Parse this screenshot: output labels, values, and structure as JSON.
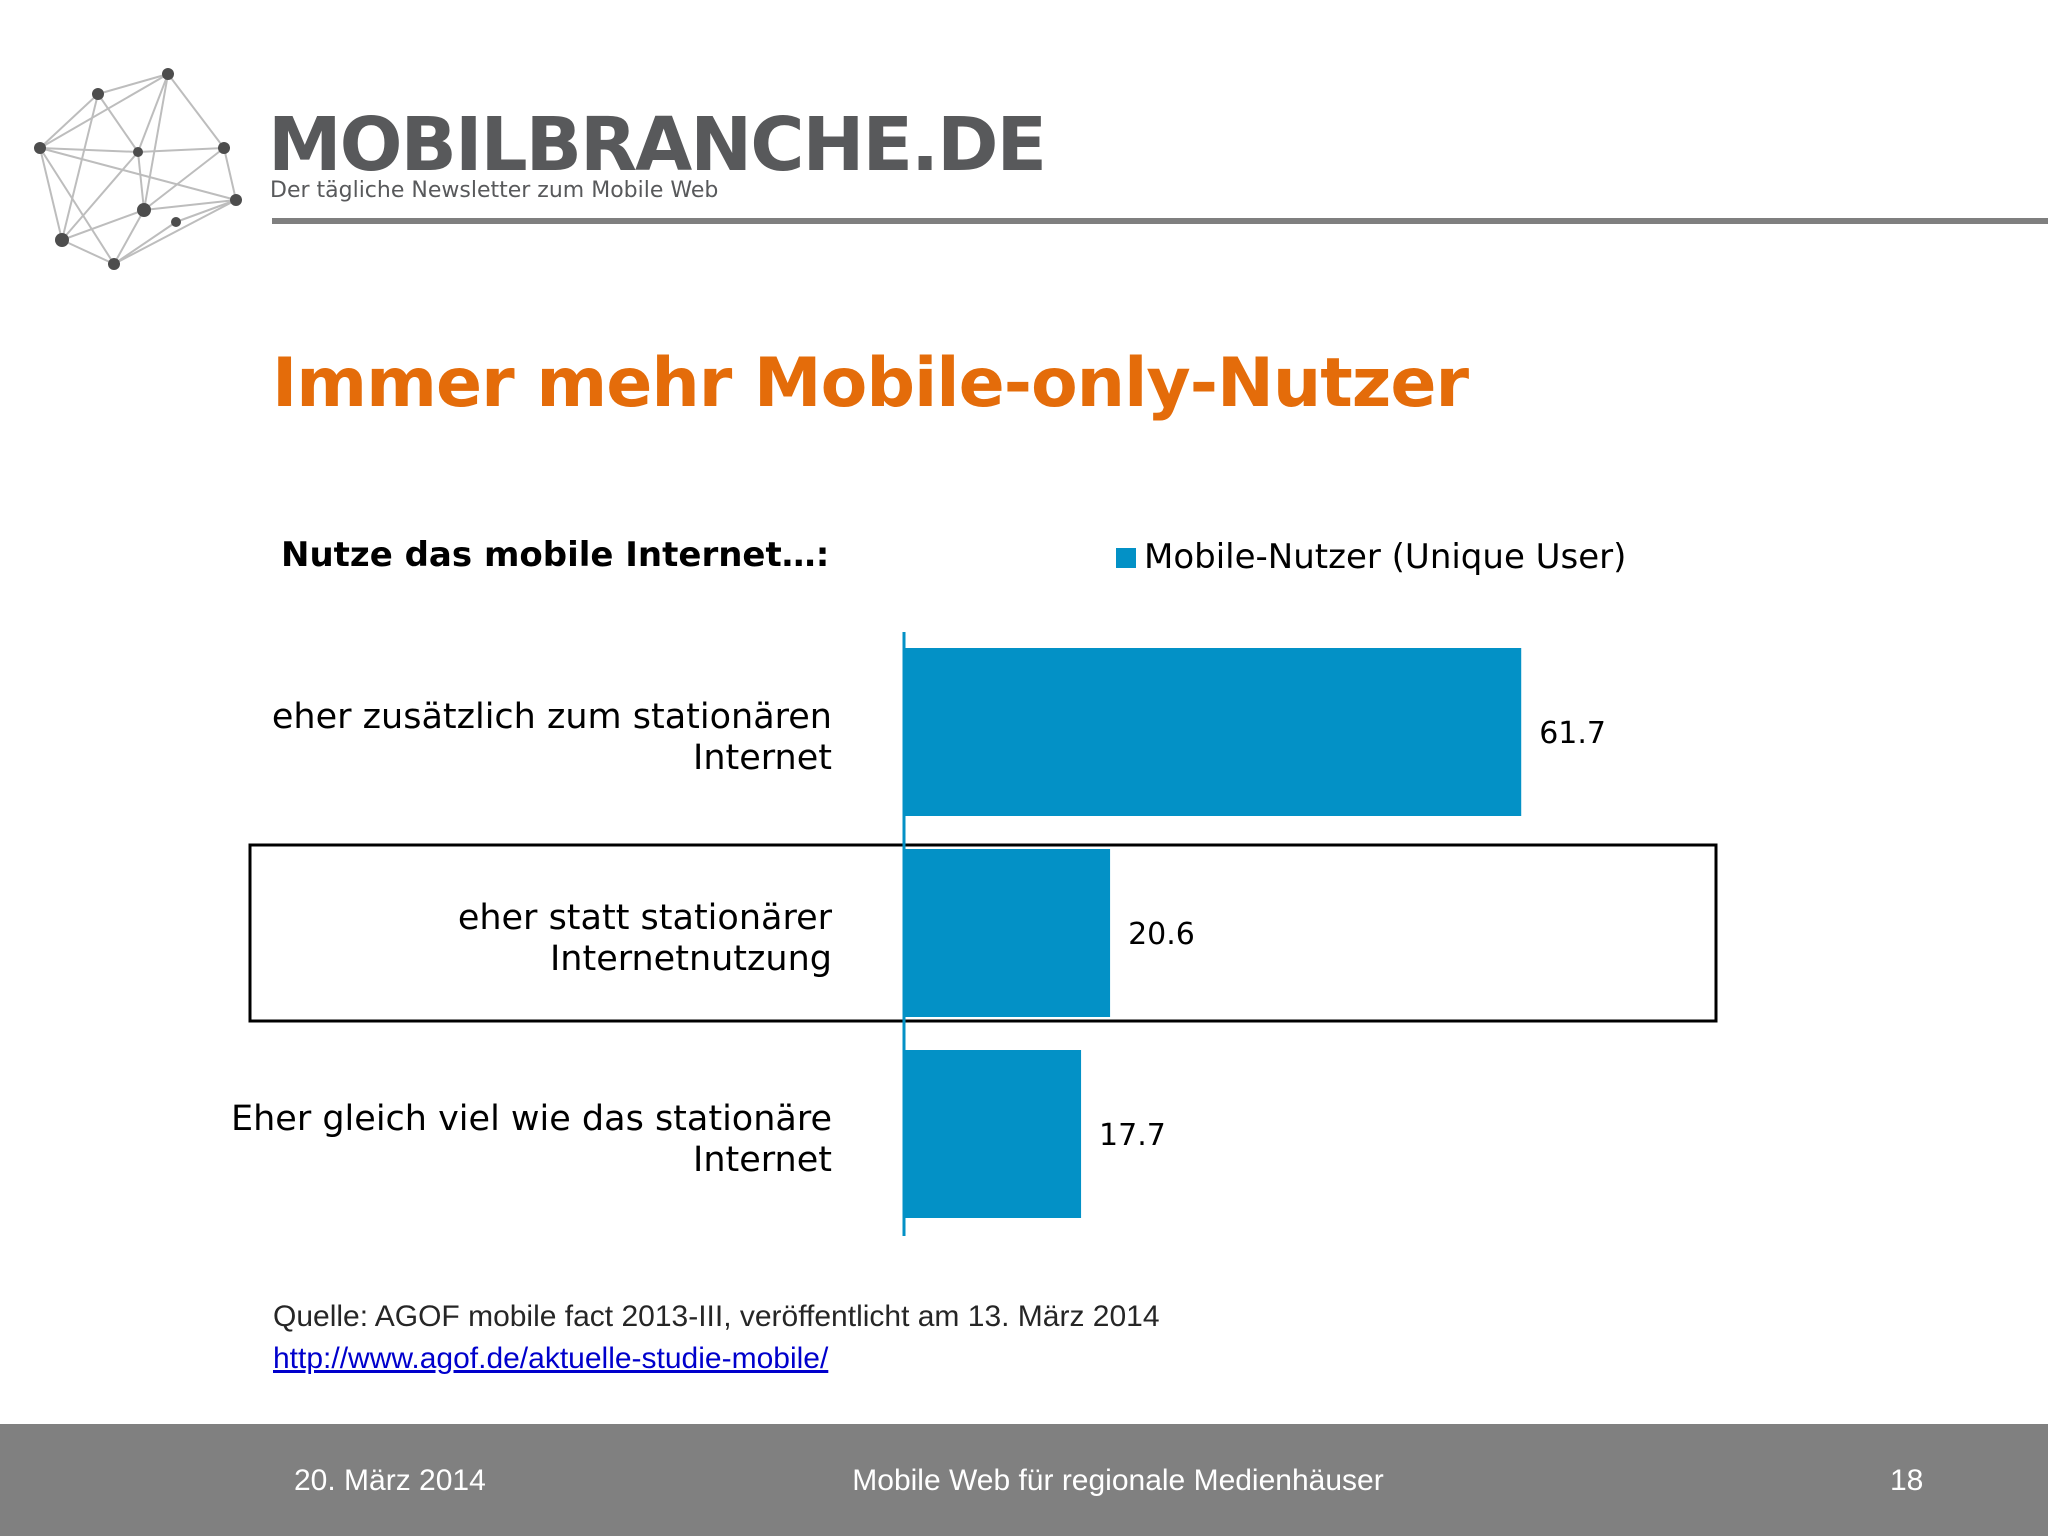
{
  "brand": {
    "name": "MOBILBRANCHE.DE",
    "tagline": "Der tägliche Newsletter zum Mobile Web"
  },
  "slide": {
    "title": "Immer mehr Mobile-only-Nutzer"
  },
  "colors": {
    "accent": "#e46c0a",
    "bar": "#0391c6",
    "footer": "#808080",
    "link": "#0000cc"
  },
  "chart_data": {
    "type": "bar",
    "orientation": "horizontal",
    "title": "Nutze das mobile Internet…:",
    "categories": [
      [
        "eher zusätzlich zum stationären",
        "Internet"
      ],
      [
        "eher statt stationärer",
        "Internetnutzung"
      ],
      [
        "Eher gleich viel wie das stationäre",
        "Internet"
      ]
    ],
    "series": [
      {
        "name": "Mobile-Nutzer (Unique User)",
        "values": [
          61.7,
          20.6,
          17.7
        ]
      }
    ],
    "value_labels": [
      "61.7",
      "20.6",
      "17.7"
    ],
    "xlim": [
      0,
      85
    ],
    "grid": false,
    "legend": "top",
    "highlighted_category": 1
  },
  "source": {
    "text": "Quelle: AGOF mobile fact 2013-III, veröffentlicht am 13. März 2014",
    "link": "http://www.agof.de/aktuelle-studie-mobile/"
  },
  "footer": {
    "date": "20. März 2014",
    "title": "Mobile Web für regionale Medienhäuser",
    "page": "18"
  }
}
